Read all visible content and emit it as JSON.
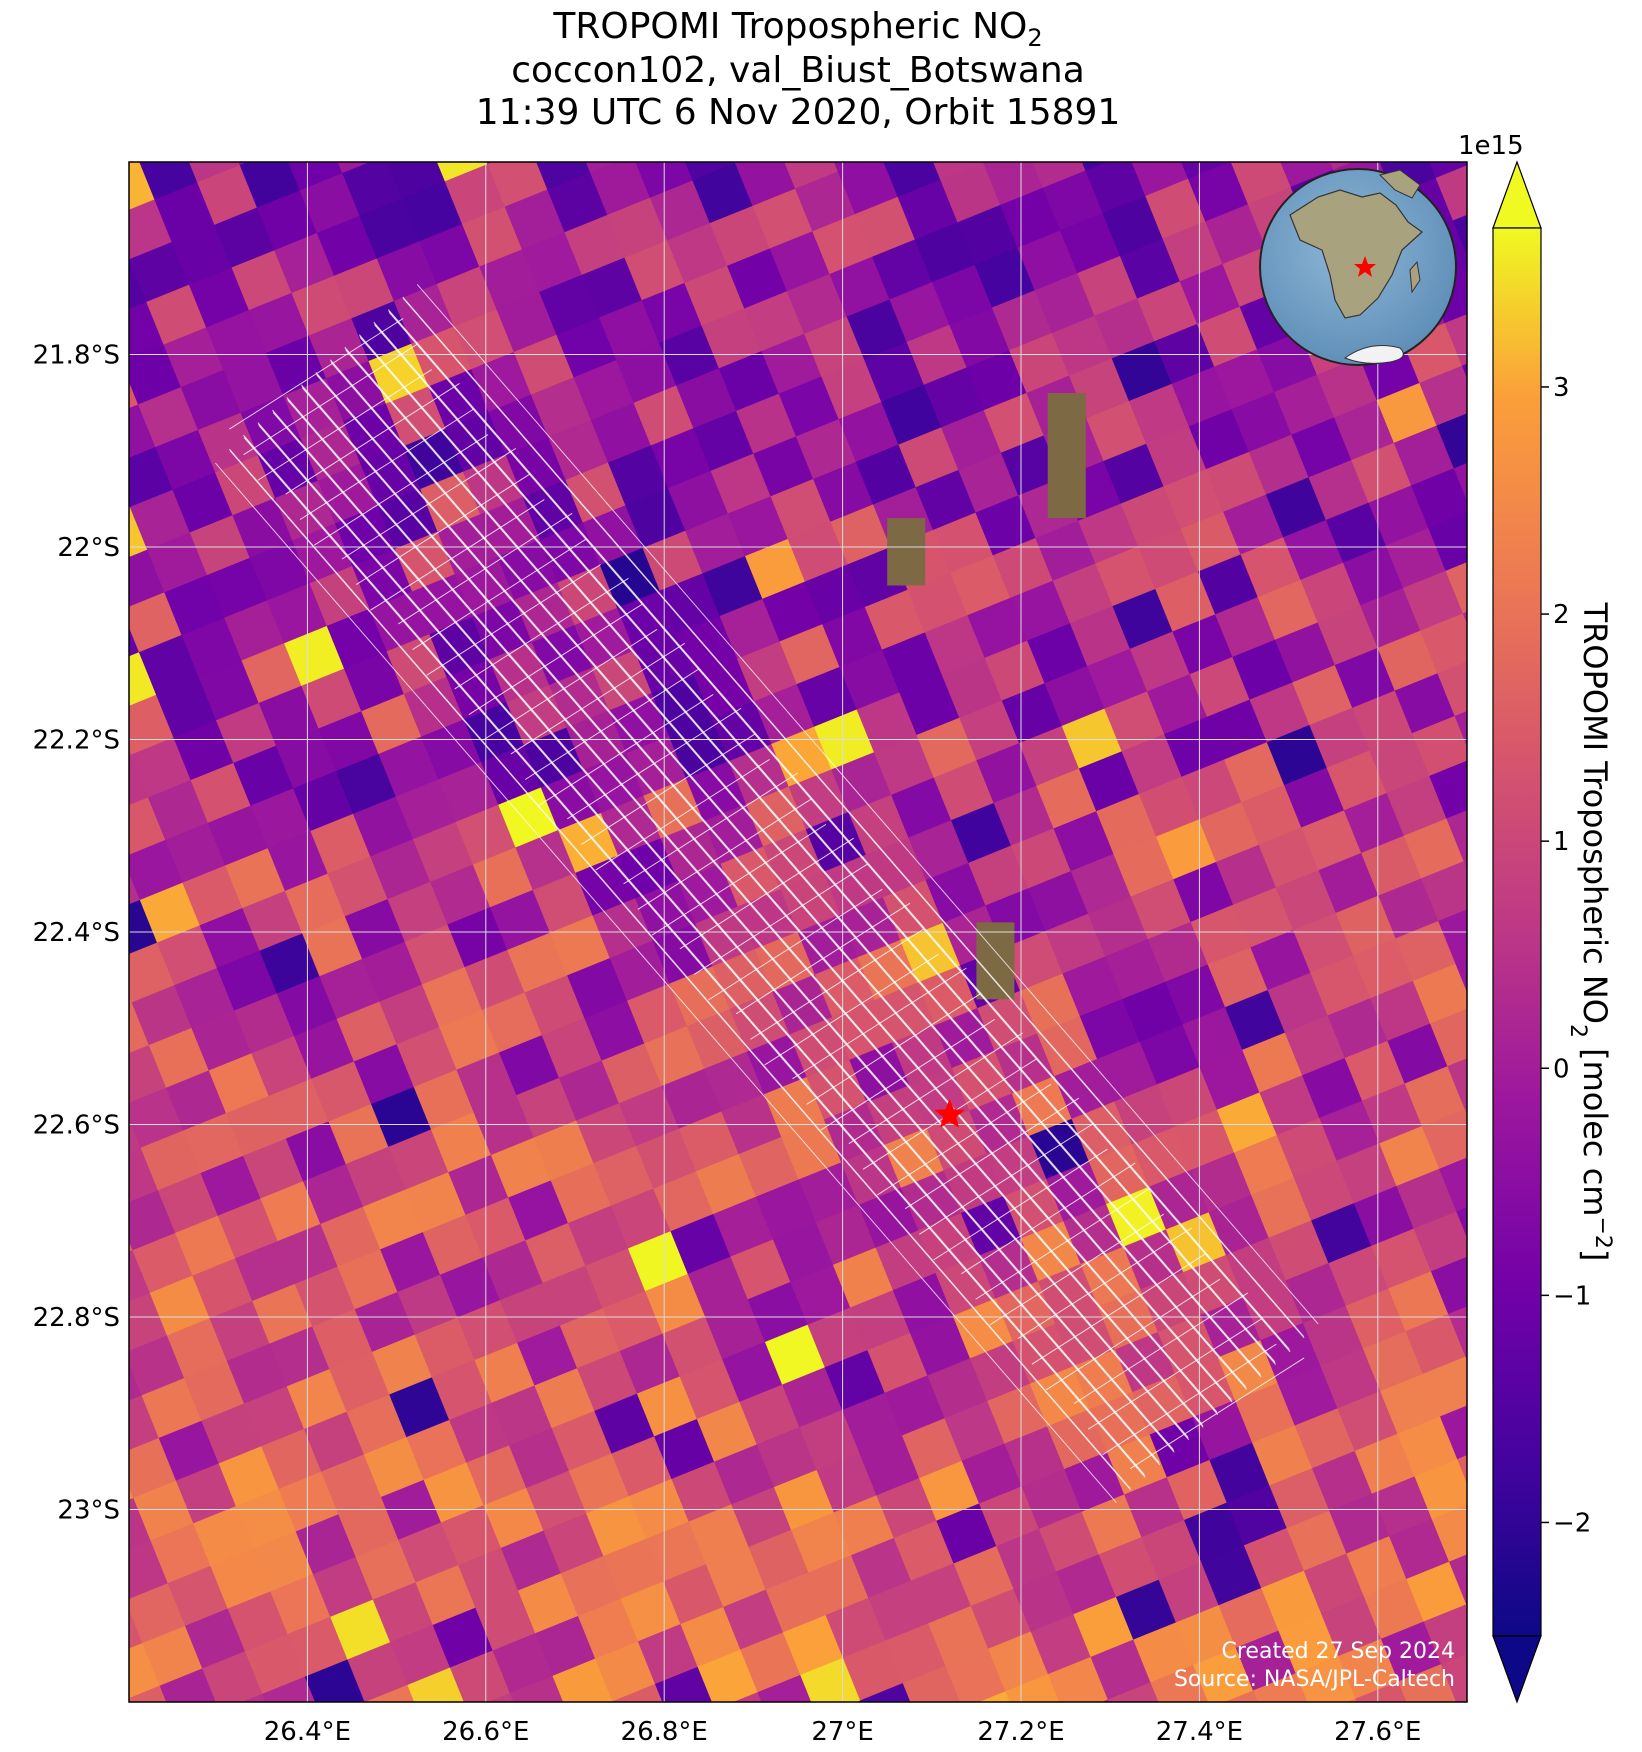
{
  "title": {
    "line1_prefix": "TROPOMI Tropospheric NO",
    "line1_sub": "2",
    "line2": "coccon102, val_Biust_Botswana",
    "line3": "11:39 UTC 6 Nov 2020, Orbit 15891"
  },
  "map": {
    "lon_ticks": [
      "26.4°E",
      "26.6°E",
      "26.8°E",
      "27°E",
      "27.2°E",
      "27.4°E",
      "27.6°E"
    ],
    "lat_ticks": [
      "21.8°S",
      "22°S",
      "22.2°S",
      "22.4°S",
      "22.6°S",
      "22.8°S",
      "23°S"
    ],
    "site_marker": "red-star",
    "credits": {
      "created": "Created 27 Sep 2024",
      "source": "Source: NASA/JPL-Caltech"
    }
  },
  "colorbar": {
    "scale_label": "1e15",
    "ticks": [
      "3",
      "2",
      "1",
      "0",
      "−1",
      "−2"
    ],
    "label_prefix": "TROPOMI Tropospheric NO",
    "label_sub": "2",
    "label_suffix": " [molec cm",
    "label_sup": "−2",
    "label_end": "]",
    "colormap": "plasma",
    "extend": "both"
  },
  "chart_data": {
    "type": "heatmap",
    "xlim": [
      26.2,
      27.7
    ],
    "ylim": [
      -23.2,
      -21.6
    ],
    "xticks": [
      26.4,
      26.6,
      26.8,
      27.0,
      27.2,
      27.4,
      27.6
    ],
    "yticks": [
      -21.8,
      -22.0,
      -22.2,
      -22.4,
      -22.6,
      -22.8,
      -23.0
    ],
    "vmin": -2.5,
    "vmax": 3.7,
    "colorbar_ticks": [
      -2,
      -1,
      0,
      1,
      2,
      3
    ],
    "units": "molec cm-2",
    "scale": 1000000000000000.0,
    "grid": true,
    "site": {
      "lon": 27.12,
      "lat": -22.59
    },
    "inset": "globe-africa"
  }
}
